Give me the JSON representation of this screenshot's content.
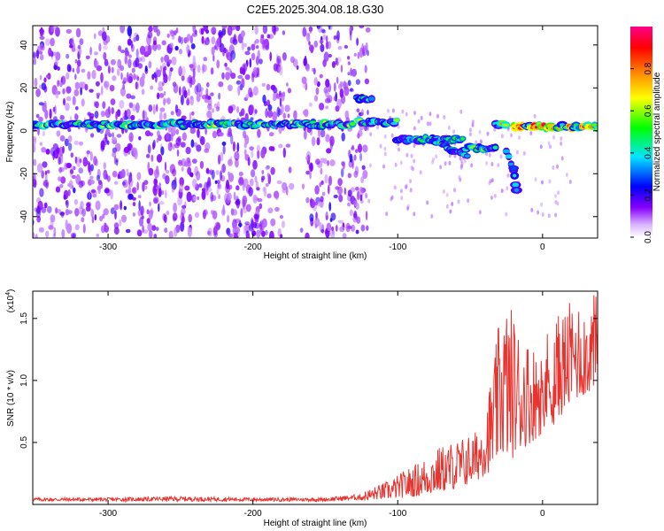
{
  "title": "C2E5.2025.304.08.18.G30",
  "chart_data": [
    {
      "type": "heatmap",
      "xlabel": "Height of straight line (km)",
      "ylabel": "Frequency (Hz)",
      "xlim": [
        -352,
        38
      ],
      "ylim": [
        -50,
        49
      ],
      "xticks": [
        -300,
        -200,
        -100,
        0
      ],
      "xtick_labels": [
        "-300",
        "-200",
        "-100",
        "0"
      ],
      "yticks": [
        -40,
        -20,
        0,
        20,
        40
      ],
      "ytick_labels": [
        "-40",
        "-20",
        "0",
        "20",
        "40"
      ],
      "colorbar": {
        "label": "Normalized spectral amplitude",
        "range": [
          0,
          1
        ],
        "ticks": [
          0,
          0.2,
          0.4,
          0.6,
          0.8
        ],
        "tick_labels": [
          "0.0",
          "0.2",
          "0.4",
          "0.6",
          "0.8"
        ],
        "colormap": [
          "#ffffff",
          "#8800ff",
          "#0000ff",
          "#00e5ff",
          "#00ff00",
          "#ffff00",
          "#ff8800",
          "#ff0000",
          "#ff0088"
        ]
      },
      "features": {
        "band_center_hz": 3,
        "band_segments": [
          [
            -352,
            -130,
            3
          ],
          [
            -128,
            -100,
            4
          ],
          [
            -100,
            -55,
            -4
          ],
          [
            -55,
            -32,
            -8
          ],
          [
            -32,
            -25,
            3
          ],
          [
            -20,
            38,
            2
          ]
        ],
        "branch_lower": [
          [
            -75,
            -5
          ],
          [
            -62,
            -9
          ],
          [
            -52,
            -12
          ]
        ],
        "branch_tail": [
          [
            -25,
            -10
          ],
          [
            -20,
            -18
          ],
          [
            -18,
            -28
          ]
        ],
        "upper_feature": [
          [
            -128,
            15
          ],
          [
            -118,
            15
          ]
        ],
        "noise_extent_x": [
          -352,
          -120
        ]
      }
    },
    {
      "type": "line",
      "xlabel": "Height of straight line (km)",
      "ylabel": "SNR (10 * v/v)",
      "y_multiplier_label": "(x10",
      "y_multiplier_exp": "4",
      "xlim": [
        -352,
        38
      ],
      "ylim": [
        0,
        1.72
      ],
      "xticks": [
        -300,
        -200,
        -100,
        0
      ],
      "xtick_labels": [
        "-300",
        "-200",
        "-100",
        "0"
      ],
      "yticks": [
        0.5,
        1.0,
        1.5
      ],
      "ytick_labels": [
        "0.5",
        "1.0",
        "1.5"
      ],
      "series": [
        {
          "color": "#e8332f",
          "x": [
            -352,
            -300,
            -250,
            -200,
            -150,
            -125,
            -115,
            -105,
            -95,
            -85,
            -75,
            -65,
            -55,
            -45,
            -35,
            -28,
            -22,
            -15,
            -5,
            5,
            15,
            25,
            38
          ],
          "baseline": [
            0.04,
            0.04,
            0.04,
            0.04,
            0.04,
            0.05,
            0.07,
            0.08,
            0.1,
            0.12,
            0.16,
            0.2,
            0.25,
            0.35,
            0.5,
            0.7,
            0.65,
            0.8,
            0.95,
            1.15,
            1.35,
            1.55,
            1.68
          ],
          "peak": [
            0.07,
            0.07,
            0.08,
            0.07,
            0.07,
            0.1,
            0.15,
            0.2,
            0.28,
            0.35,
            0.45,
            0.5,
            0.55,
            0.6,
            1.05,
            1.66,
            1.62,
            1.4,
            1.3,
            1.45,
            1.6,
            1.68,
            1.7
          ]
        }
      ]
    }
  ]
}
